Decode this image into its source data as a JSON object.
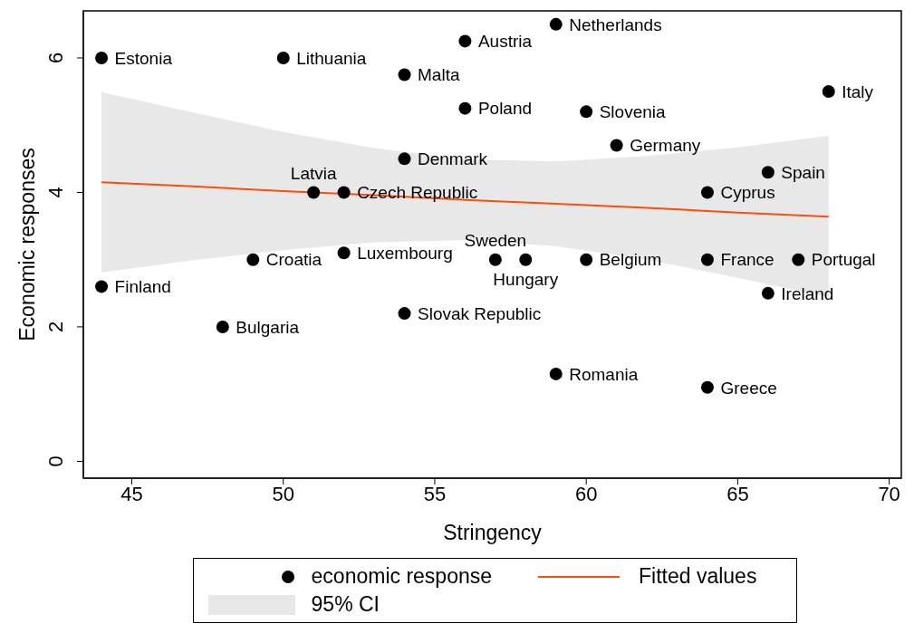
{
  "chart_data": {
    "type": "scatter",
    "xlabel": "Stringency",
    "ylabel": "Economic responses",
    "xlim": [
      43.4,
      70.4
    ],
    "ylim": [
      -0.25,
      6.7
    ],
    "xticks": [
      45,
      50,
      55,
      60,
      65,
      70
    ],
    "yticks": [
      0,
      2,
      4,
      6
    ],
    "legend": "bottom",
    "annotations": [
      "95% CI"
    ],
    "series": [
      {
        "name": "economic response",
        "color": "#000000",
        "marker": "circle",
        "x": [
          44,
          50,
          59,
          56,
          54,
          68,
          56,
          60,
          61,
          54,
          66,
          51,
          52,
          64,
          49,
          52,
          57,
          58,
          60,
          64,
          67,
          44,
          66,
          54,
          48,
          59,
          64
        ],
        "values": [
          6,
          6,
          6.5,
          6.25,
          5.75,
          5.5,
          5.25,
          5.2,
          4.7,
          4.5,
          4.3,
          4,
          4,
          4,
          3,
          3.1,
          3,
          3,
          3,
          3,
          3,
          2.6,
          2.5,
          2.2,
          2,
          1.3,
          1.1
        ],
        "value_labels": [
          "Estonia",
          "Lithuania",
          "Netherlands",
          "Austria",
          "Malta",
          "Italy",
          "Poland",
          "Slovenia",
          "Germany",
          "Denmark",
          "Spain",
          "Latvia",
          "Czech Republic",
          "Cyprus",
          "Croatia",
          "Luxembourg",
          "Sweden",
          "Hungary",
          "Belgium",
          "France",
          "Portugal",
          "Finland",
          "Ireland",
          "Slovak Republic",
          "Bulgaria",
          "Romania",
          "Greece"
        ]
      },
      {
        "name": "Fitted values",
        "type": "line",
        "color": "#fc4e08",
        "marker": "none",
        "x": [
          44,
          47,
          50,
          53,
          56,
          59,
          62,
          65,
          68
        ],
        "values": [
          4.15,
          4.09,
          4.02,
          3.96,
          3.89,
          3.83,
          3.77,
          3.7,
          3.64
        ],
        "lower": [
          2.81,
          2.99,
          3.14,
          3.26,
          3.29,
          3.2,
          3.0,
          2.73,
          2.44
        ],
        "upper": [
          5.49,
          5.19,
          4.9,
          4.66,
          4.49,
          4.46,
          4.54,
          4.67,
          4.84
        ]
      }
    ]
  }
}
